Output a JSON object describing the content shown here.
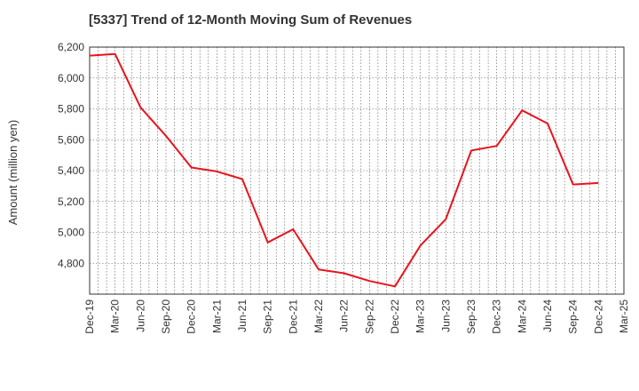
{
  "chart_data": {
    "type": "line",
    "title": "[5337]  Trend of 12-Month Moving Sum of Revenues",
    "xlabel": "",
    "ylabel": "Amount (million yen)",
    "ylim": [
      4600,
      6200
    ],
    "yticks": [
      4800,
      5000,
      5200,
      5400,
      5600,
      5800,
      6000,
      6200
    ],
    "ytick_labels": [
      "4,800",
      "5,000",
      "5,200",
      "5,400",
      "5,600",
      "5,800",
      "6,000",
      "6,200"
    ],
    "categories": [
      "Dec-19",
      "Mar-20",
      "Jun-20",
      "Sep-20",
      "Dec-20",
      "Mar-21",
      "Jun-21",
      "Sep-21",
      "Dec-21",
      "Mar-22",
      "Jun-22",
      "Sep-22",
      "Dec-22",
      "Mar-23",
      "Jun-23",
      "Sep-23",
      "Dec-23",
      "Mar-24",
      "Jun-24",
      "Sep-24",
      "Dec-24",
      "Mar-25"
    ],
    "series": [
      {
        "color": "#e8141b",
        "values": [
          6145,
          6155,
          5810,
          5625,
          5420,
          5395,
          5345,
          4935,
          5020,
          4760,
          4735,
          4685,
          4650,
          4915,
          5085,
          5530,
          5560,
          5790,
          5705,
          5310,
          5320,
          null
        ]
      }
    ],
    "grid": true,
    "legend": "none"
  }
}
